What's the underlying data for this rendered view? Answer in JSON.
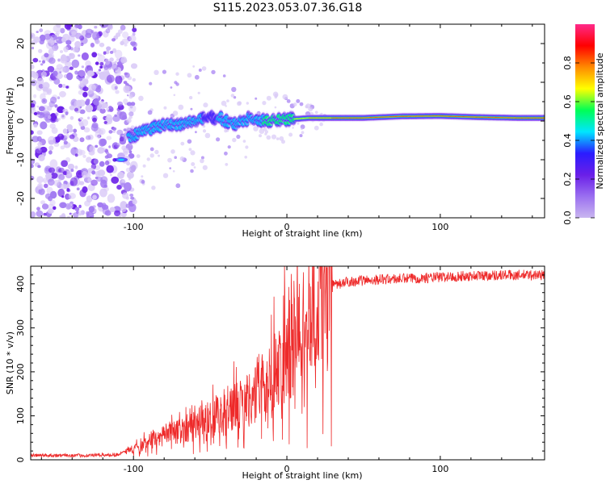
{
  "title": "S115.2023.053.07.36.G18",
  "colors": {
    "snr_line": "#ee2a2a",
    "colormap": [
      "#f7f7f7",
      "#c9b6f0",
      "#9a6ff0",
      "#6a1fe8",
      "#2a1cff",
      "#00e6ff",
      "#00ff55",
      "#ffff00",
      "#ff8a00",
      "#ff0000",
      "#ff2a8a"
    ]
  },
  "chart_data": [
    {
      "type": "heatmap",
      "name": "spectrogram",
      "xlabel": "Height of straight line (km)",
      "ylabel": "Frequency (Hz)",
      "xlim": [
        -167,
        168
      ],
      "ylim": [
        -25,
        25
      ],
      "xticks": [
        -100,
        0,
        100
      ],
      "xtick_labels": [
        "-100",
        "0",
        "100"
      ],
      "yticks": [
        -20,
        -10,
        0,
        10,
        20
      ],
      "ytick_labels": [
        "-20",
        "-10",
        "0",
        "10",
        "20"
      ],
      "colorbar": {
        "label": "Normalized spectral amplitude",
        "range": [
          0,
          1
        ],
        "ticks": [
          0.0,
          0.2,
          0.4,
          0.6,
          0.8
        ],
        "tick_labels": [
          "0.0",
          "0.2",
          "0.4",
          "0.6",
          "0.8"
        ]
      },
      "ridge": {
        "x": [
          -103,
          -95,
          -85,
          -75,
          -65,
          -55,
          -45,
          -35,
          -25,
          -15,
          -5,
          5,
          15,
          30,
          50,
          75,
          100,
          125,
          150,
          168
        ],
        "freq": [
          -4.5,
          -3,
          -1.5,
          -1,
          -0.5,
          0.5,
          1,
          -1,
          0.5,
          0,
          0.5,
          0.5,
          0.8,
          0.8,
          0.8,
          1.2,
          1.3,
          1.0,
          0.8,
          0.8
        ],
        "amplitude": [
          0.45,
          0.45,
          0.4,
          0.4,
          0.4,
          0.35,
          0.35,
          0.4,
          0.5,
          0.6,
          0.7,
          0.8,
          0.9,
          0.95,
          1.0,
          1.0,
          1.0,
          1.0,
          1.0,
          1.0
        ]
      },
      "noise_region_x": [
        -167,
        -105
      ]
    },
    {
      "type": "line",
      "name": "snr",
      "xlabel": "Height of straight line (km)",
      "ylabel": "SNR (10 * v/v)",
      "xlim": [
        -167,
        168
      ],
      "ylim": [
        0,
        440
      ],
      "xticks": [
        -100,
        0,
        100
      ],
      "xtick_labels": [
        "-100",
        "0",
        "100"
      ],
      "yticks": [
        0,
        100,
        200,
        300,
        400
      ],
      "ytick_labels": [
        "0",
        "100",
        "200",
        "300",
        "400"
      ],
      "envelope": {
        "x": [
          -167,
          -130,
          -110,
          -100,
          -90,
          -80,
          -70,
          -60,
          -50,
          -40,
          -30,
          -20,
          -10,
          0,
          10,
          20,
          30,
          40,
          60,
          80,
          100,
          120,
          140,
          168
        ],
        "y": [
          10,
          10,
          12,
          25,
          40,
          55,
          65,
          80,
          95,
          110,
          125,
          150,
          190,
          240,
          300,
          360,
          395,
          405,
          410,
          412,
          415,
          418,
          420,
          420
        ]
      }
    }
  ]
}
